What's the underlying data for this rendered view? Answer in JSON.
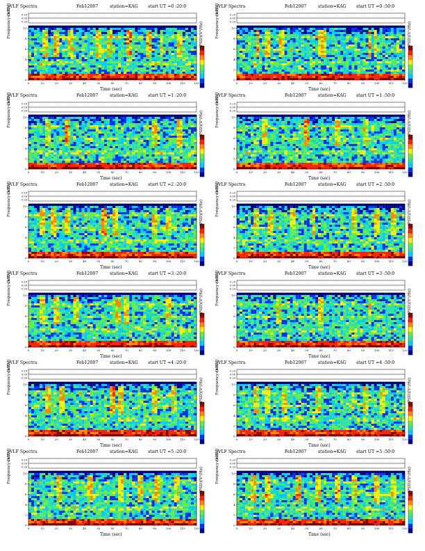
{
  "labels": {
    "ch1": "ch1(V)",
    "frequency_axis": "Frequency (kHz)",
    "time_axis": "Time (sec)",
    "colorbar": "log(PSD)(V²/Hz)"
  },
  "colors": {
    "scale": [
      "#00008b",
      "#0033ff",
      "#00ccff",
      "#33e0a0",
      "#66ee44",
      "#ffee00",
      "#ff8800",
      "#ff2200",
      "#8b0000"
    ]
  },
  "chart_data": [
    {
      "type": "heatmap",
      "title_left": "VLF Spectra",
      "date": "Feb12007",
      "station": "station=KAG",
      "start_ut": "start  UT =0 :20:0",
      "xlabel": "Time (sec)",
      "ylabel": "Frequency (kHz)",
      "x_ticks": [
        "0",
        "10",
        "20",
        "30",
        "40",
        "50",
        "60",
        "70",
        "80",
        "90",
        "100",
        "110",
        "120"
      ],
      "y_ticks": [
        "0",
        "2",
        "4",
        "6",
        "8",
        "10"
      ],
      "ch1_ticks": [
        "0.20",
        "0.00",
        "-0.20"
      ],
      "xlim": [
        0,
        120
      ],
      "ylim": [
        0,
        10.5
      ],
      "seed": 11,
      "density": 0.55,
      "bursts": [
        [
          12,
          0.7
        ],
        [
          20,
          0.8
        ],
        [
          30,
          0.6
        ],
        [
          50,
          0.6
        ],
        [
          58,
          0.6
        ],
        [
          72,
          1.0
        ],
        [
          86,
          0.8
        ],
        [
          95,
          0.7
        ],
        [
          108,
          0.6
        ]
      ]
    },
    {
      "type": "heatmap",
      "title_left": "VLF Spectra",
      "date": "Feb12007",
      "station": "station=KAG",
      "start_ut": "start  UT =0 :50:0",
      "xlabel": "Time (sec)",
      "ylabel": "Frequency (kHz)",
      "x_ticks": [
        "0",
        "10",
        "20",
        "30",
        "40",
        "50",
        "60",
        "70",
        "80",
        "90",
        "100",
        "110",
        "120"
      ],
      "y_ticks": [
        "0",
        "2",
        "4",
        "6",
        "8",
        "10"
      ],
      "ch1_ticks": [
        "0.20",
        "0.00",
        "-0.20"
      ],
      "xlim": [
        0,
        120
      ],
      "ylim": [
        0,
        10.5
      ],
      "seed": 23,
      "density": 0.5,
      "bursts": [
        [
          15,
          0.8
        ],
        [
          22,
          0.7
        ],
        [
          32,
          0.6
        ],
        [
          60,
          0.6
        ],
        [
          62,
          0.7
        ],
        [
          95,
          0.8
        ],
        [
          99,
          0.6
        ]
      ]
    },
    {
      "type": "heatmap",
      "title_left": "VLF Spectra",
      "date": "Feb12007",
      "station": "station=KAG",
      "start_ut": "start  UT =1 :20:0",
      "xlabel": "Time (sec)",
      "ylabel": "Frequency (kHz)",
      "x_ticks": [
        "0",
        "10",
        "20",
        "30",
        "40",
        "50",
        "60",
        "70",
        "80",
        "90",
        "100",
        "110",
        "120"
      ],
      "y_ticks": [
        "0",
        "2",
        "4",
        "6",
        "8",
        "10"
      ],
      "ch1_ticks": [
        "0.20",
        "0.00",
        "-0.20"
      ],
      "xlim": [
        0,
        120
      ],
      "ylim": [
        0,
        10.5
      ],
      "seed": 37,
      "density": 0.45,
      "bursts": [
        [
          14,
          0.7
        ],
        [
          28,
          0.9
        ],
        [
          90,
          0.6
        ],
        [
          108,
          0.7
        ]
      ]
    },
    {
      "type": "heatmap",
      "title_left": "VLF Spectra",
      "date": "Feb12007",
      "station": "station=KAG",
      "start_ut": "start  UT =1 :50:0",
      "xlabel": "Time (sec)",
      "ylabel": "Frequency (kHz)",
      "x_ticks": [
        "0",
        "10",
        "20",
        "30",
        "40",
        "50",
        "60",
        "70",
        "80",
        "90",
        "100",
        "110",
        "120"
      ],
      "y_ticks": [
        "0",
        "2",
        "4",
        "6",
        "8",
        "10"
      ],
      "ch1_ticks": [
        "0.20",
        "0.00",
        "-0.20"
      ],
      "xlim": [
        0,
        120
      ],
      "ylim": [
        0,
        10.5
      ],
      "seed": 41,
      "density": 0.45,
      "bursts": [
        [
          20,
          0.6
        ],
        [
          50,
          0.9
        ],
        [
          72,
          0.6
        ],
        [
          92,
          0.6
        ]
      ]
    },
    {
      "type": "heatmap",
      "title_left": "VLF Spectra",
      "date": "Feb12007",
      "station": "station=KAG",
      "start_ut": "start  UT =2 :20:0",
      "xlabel": "Time (sec)",
      "ylabel": "Frequency (kHz)",
      "x_ticks": [
        "0",
        "10",
        "20",
        "30",
        "40",
        "50",
        "60",
        "70",
        "80",
        "90",
        "100",
        "110",
        "120"
      ],
      "y_ticks": [
        "0",
        "2",
        "4",
        "6",
        "8",
        "10"
      ],
      "ch1_ticks": [
        "0.20",
        "0.00",
        "-0.20"
      ],
      "xlim": [
        0,
        120
      ],
      "ylim": [
        0,
        10.5
      ],
      "seed": 53,
      "density": 0.5,
      "bursts": [
        [
          10,
          0.6
        ],
        [
          18,
          0.7
        ],
        [
          28,
          0.7
        ],
        [
          54,
          0.9
        ],
        [
          62,
          0.7
        ],
        [
          90,
          0.7
        ],
        [
          100,
          0.6
        ]
      ]
    },
    {
      "type": "heatmap",
      "title_left": "VLF Spectra",
      "date": "Feb12007",
      "station": "station=KAG",
      "start_ut": "start  UT =2 :50:0",
      "xlabel": "Time (sec)",
      "ylabel": "Frequency (kHz)",
      "x_ticks": [
        "0",
        "10",
        "20",
        "30",
        "40",
        "50",
        "60",
        "70",
        "80",
        "90",
        "100",
        "110",
        "120"
      ],
      "y_ticks": [
        "0",
        "2",
        "4",
        "6",
        "8",
        "10"
      ],
      "ch1_ticks": [
        "0.20",
        "0.00",
        "-0.20"
      ],
      "xlim": [
        0,
        120
      ],
      "ylim": [
        0,
        10.5
      ],
      "seed": 67,
      "density": 0.55,
      "bursts": [
        [
          14,
          0.6
        ],
        [
          24,
          0.6
        ],
        [
          40,
          0.6
        ],
        [
          55,
          0.7
        ],
        [
          84,
          0.7
        ],
        [
          100,
          0.6
        ],
        [
          112,
          0.6
        ]
      ]
    },
    {
      "type": "heatmap",
      "title_left": "VLF Spectra",
      "date": "Feb12007",
      "station": "station=KAG",
      "start_ut": "start  UT =3 :20:0",
      "xlabel": "Time (sec)",
      "ylabel": "Frequency (kHz)",
      "x_ticks": [
        "0",
        "10",
        "20",
        "30",
        "40",
        "50",
        "60",
        "70",
        "80",
        "90",
        "100",
        "110",
        "120"
      ],
      "y_ticks": [
        "0",
        "2",
        "4",
        "6",
        "8",
        "10"
      ],
      "ch1_ticks": [
        "0.20",
        "0.00",
        "-0.20"
      ],
      "xlim": [
        0,
        120
      ],
      "ylim": [
        0,
        10.5
      ],
      "seed": 79,
      "density": 0.35,
      "bursts": [
        [
          10,
          0.6
        ],
        [
          20,
          0.6
        ],
        [
          34,
          0.6
        ],
        [
          64,
          0.8
        ],
        [
          70,
          0.7
        ],
        [
          100,
          0.6
        ]
      ]
    },
    {
      "type": "heatmap",
      "title_left": "VLF Spectra",
      "date": "Feb12007",
      "station": "station=KAG",
      "start_ut": "start  UT =3 :50:0",
      "xlabel": "Time (sec)",
      "ylabel": "Frequency (kHz)",
      "x_ticks": [
        "0",
        "10",
        "20",
        "30",
        "40",
        "50",
        "60",
        "70",
        "80",
        "90",
        "100",
        "110",
        "120"
      ],
      "y_ticks": [
        "0",
        "2",
        "4",
        "6",
        "8",
        "10"
      ],
      "ch1_ticks": [
        "0.20",
        "0.00",
        "-0.20"
      ],
      "xlim": [
        0,
        120
      ],
      "ylim": [
        0,
        10.5
      ],
      "seed": 83,
      "density": 0.3,
      "bursts": [
        [
          30,
          0.6
        ],
        [
          60,
          0.6
        ],
        [
          95,
          0.6
        ]
      ]
    },
    {
      "type": "heatmap",
      "title_left": "VLF Spectra",
      "date": "Feb12007",
      "station": "station=KAG",
      "start_ut": "start  UT =4 :20:0",
      "xlabel": "Time (sec)",
      "ylabel": "Frequency (kHz)",
      "x_ticks": [
        "0",
        "10",
        "20",
        "30",
        "40",
        "50",
        "60",
        "70",
        "80",
        "90",
        "100",
        "110",
        "120"
      ],
      "y_ticks": [
        "0",
        "2",
        "4",
        "6",
        "8",
        "10"
      ],
      "ch1_ticks": [
        "0.20",
        "0.00",
        "-0.20"
      ],
      "xlim": [
        0,
        120
      ],
      "ylim": [
        0,
        10.5
      ],
      "seed": 97,
      "density": 0.45,
      "bursts": [
        [
          14,
          0.7
        ],
        [
          24,
          0.7
        ],
        [
          60,
          0.8
        ],
        [
          66,
          0.7
        ],
        [
          90,
          0.6
        ],
        [
          104,
          0.6
        ]
      ]
    },
    {
      "type": "heatmap",
      "title_left": "VLF Spectra",
      "date": "Feb12007",
      "station": "station=KAG",
      "start_ut": "start  UT =4 :50:0",
      "xlabel": "Time (sec)",
      "ylabel": "Frequency (kHz)",
      "x_ticks": [
        "0",
        "10",
        "20",
        "30",
        "40",
        "50",
        "60",
        "70",
        "80",
        "90",
        "100",
        "110",
        "120"
      ],
      "y_ticks": [
        "0",
        "2",
        "4",
        "6",
        "8",
        "10"
      ],
      "ch1_ticks": [
        "0.20",
        "0.00",
        "-0.20"
      ],
      "xlim": [
        0,
        120
      ],
      "ylim": [
        0,
        10.5
      ],
      "seed": 101,
      "density": 0.4,
      "bursts": [
        [
          14,
          0.7
        ],
        [
          22,
          0.7
        ],
        [
          34,
          0.6
        ],
        [
          58,
          0.6
        ],
        [
          92,
          0.6
        ],
        [
          104,
          0.6
        ]
      ]
    },
    {
      "type": "heatmap",
      "title_left": "VLF Spectra",
      "date": "Feb12007",
      "station": "station=KAG",
      "start_ut": "start  UT =5 :20:0",
      "xlabel": "Time (sec)",
      "ylabel": "Frequency (kHz)",
      "x_ticks": [
        "0",
        "10",
        "20",
        "30",
        "40",
        "50",
        "60",
        "70",
        "80",
        "90",
        "100",
        "110",
        "120"
      ],
      "y_ticks": [
        "0",
        "2",
        "4",
        "6",
        "8",
        "10"
      ],
      "ch1_ticks": [
        "0.20",
        "0.00",
        "-0.20"
      ],
      "xlim": [
        0,
        120
      ],
      "ylim": [
        0,
        10.5
      ],
      "seed": 113,
      "density": 0.45,
      "bursts": [
        [
          22,
          0.7
        ],
        [
          44,
          0.7
        ],
        [
          66,
          0.6
        ],
        [
          80,
          0.7
        ],
        [
          92,
          0.7
        ],
        [
          106,
          0.6
        ]
      ]
    },
    {
      "type": "heatmap",
      "title_left": "VLF Spectra",
      "date": "Feb12007",
      "station": "station=KAG",
      "start_ut": "start  UT =5 :50:0",
      "xlabel": "Time (sec)",
      "ylabel": "Frequency (kHz)",
      "x_ticks": [
        "0",
        "10",
        "20",
        "30",
        "40",
        "50",
        "60",
        "70",
        "80",
        "90",
        "100",
        "110",
        "120"
      ],
      "y_ticks": [
        "0",
        "2",
        "4",
        "6",
        "8",
        "10"
      ],
      "ch1_ticks": [
        "0.20",
        "0.00",
        "-0.20"
      ],
      "xlim": [
        0,
        120
      ],
      "ylim": [
        0,
        10.5
      ],
      "seed": 127,
      "density": 0.55,
      "bursts": [
        [
          12,
          0.7
        ],
        [
          22,
          0.8
        ],
        [
          44,
          0.8
        ],
        [
          58,
          0.7
        ],
        [
          72,
          0.8
        ],
        [
          84,
          0.7
        ],
        [
          100,
          0.7
        ],
        [
          112,
          0.6
        ]
      ]
    }
  ]
}
